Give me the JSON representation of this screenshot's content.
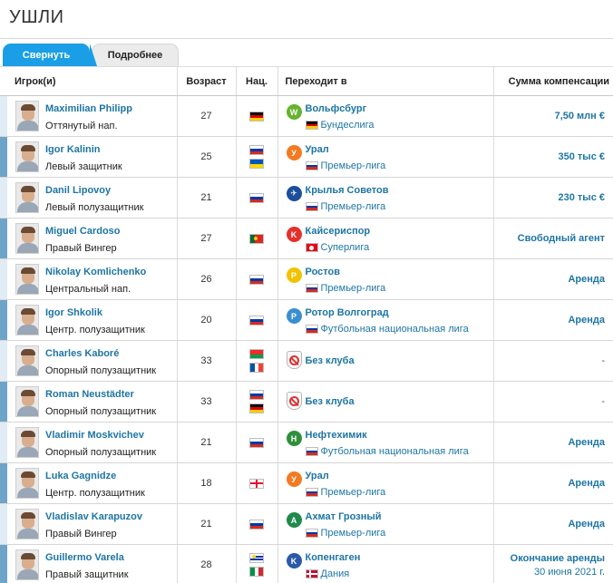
{
  "section": {
    "title": "УШЛИ"
  },
  "tabs": [
    {
      "label": "Свернуть"
    },
    {
      "label": "Подробнее"
    }
  ],
  "columns": {
    "player": "Игрок(и)",
    "age": "Возраст",
    "nat": "Нац.",
    "to": "Переходит в",
    "fee": "Сумма компенсации"
  },
  "rows": [
    {
      "name": "Maximilian Philipp",
      "position": "Оттянутый нап.",
      "age": "27",
      "flags": [
        "de"
      ],
      "club": "Вольфсбург",
      "club_logo": "wolfsburg-logo",
      "league_flag": "de",
      "league": "Бундеслига",
      "fee": "7,50 млн €"
    },
    {
      "name": "Igor Kalinin",
      "position": "Левый защитник",
      "age": "25",
      "flags": [
        "ru",
        "ua"
      ],
      "club": "Урал",
      "club_logo": "ural-logo",
      "league_flag": "ru",
      "league": "Премьер-лига",
      "fee": "350 тыс €"
    },
    {
      "name": "Danil Lipovoy",
      "position": "Левый полузащитник",
      "age": "21",
      "flags": [
        "ru"
      ],
      "club": "Крылья Советов",
      "club_logo": "krylia-logo",
      "league_flag": "ru",
      "league": "Премьер-лига",
      "fee": "230 тыс €"
    },
    {
      "name": "Miguel Cardoso",
      "position": "Правый Вингер",
      "age": "27",
      "flags": [
        "pt"
      ],
      "club": "Кайсериспор",
      "club_logo": "kayserispor-logo",
      "league_flag": "tr",
      "league": "Суперлига",
      "fee": "Свободный агент"
    },
    {
      "name": "Nikolay Komlichenko",
      "position": "Центральный нап.",
      "age": "26",
      "flags": [
        "ru"
      ],
      "club": "Ростов",
      "club_logo": "rostov-logo",
      "league_flag": "ru",
      "league": "Премьер-лига",
      "fee": "Аренда"
    },
    {
      "name": "Igor Shkolik",
      "position": "Центр. полузащитник",
      "age": "20",
      "flags": [
        "ru"
      ],
      "club": "Ротор Волгоград",
      "club_logo": "rotor-logo",
      "league_flag": "ru",
      "league": "Футбольная национальная лига",
      "fee": "Аренда"
    },
    {
      "name": "Charles Kaboré",
      "position": "Опорный полузащитник",
      "age": "33",
      "flags": [
        "bf",
        "fr"
      ],
      "club": "Без клуба",
      "club_logo": "no-club-icon",
      "league_flag": "",
      "league": "",
      "fee": "-"
    },
    {
      "name": "Roman Neustädter",
      "position": "Опорный полузащитник",
      "age": "33",
      "flags": [
        "ru",
        "de"
      ],
      "club": "Без клуба",
      "club_logo": "no-club-icon",
      "league_flag": "",
      "league": "",
      "fee": "-"
    },
    {
      "name": "Vladimir Moskvichev",
      "position": "Опорный полузащитник",
      "age": "21",
      "flags": [
        "ru"
      ],
      "club": "Нефтехимик",
      "club_logo": "neftekhimik-logo",
      "league_flag": "ru",
      "league": "Футбольная национальная лига",
      "fee": "Аренда"
    },
    {
      "name": "Luka Gagnidze",
      "position": "Центр. полузащитник",
      "age": "18",
      "flags": [
        "ge"
      ],
      "club": "Урал",
      "club_logo": "ural-logo",
      "league_flag": "ru",
      "league": "Премьер-лига",
      "fee": "Аренда"
    },
    {
      "name": "Vladislav Karapuzov",
      "position": "Правый Вингер",
      "age": "21",
      "flags": [
        "ru"
      ],
      "club": "Ахмат Грозный",
      "club_logo": "akhmat-logo",
      "league_flag": "ru",
      "league": "Премьер-лига",
      "fee": "Аренда"
    },
    {
      "name": "Guillermo Varela",
      "position": "Правый защитник",
      "age": "28",
      "flags": [
        "uy",
        "it"
      ],
      "club": "Копенгаген",
      "club_logo": "kobenhavn-logo",
      "league_flag": "dk",
      "league": "Дания",
      "fee": "Окончание аренды",
      "fee_sub": "30 июня 2021 г."
    }
  ],
  "colors": {
    "accent": "#1a9ee6",
    "link": "#1d75a3",
    "stripe_a": "#e1ecf4",
    "stripe_b": "#6fa4c9"
  }
}
